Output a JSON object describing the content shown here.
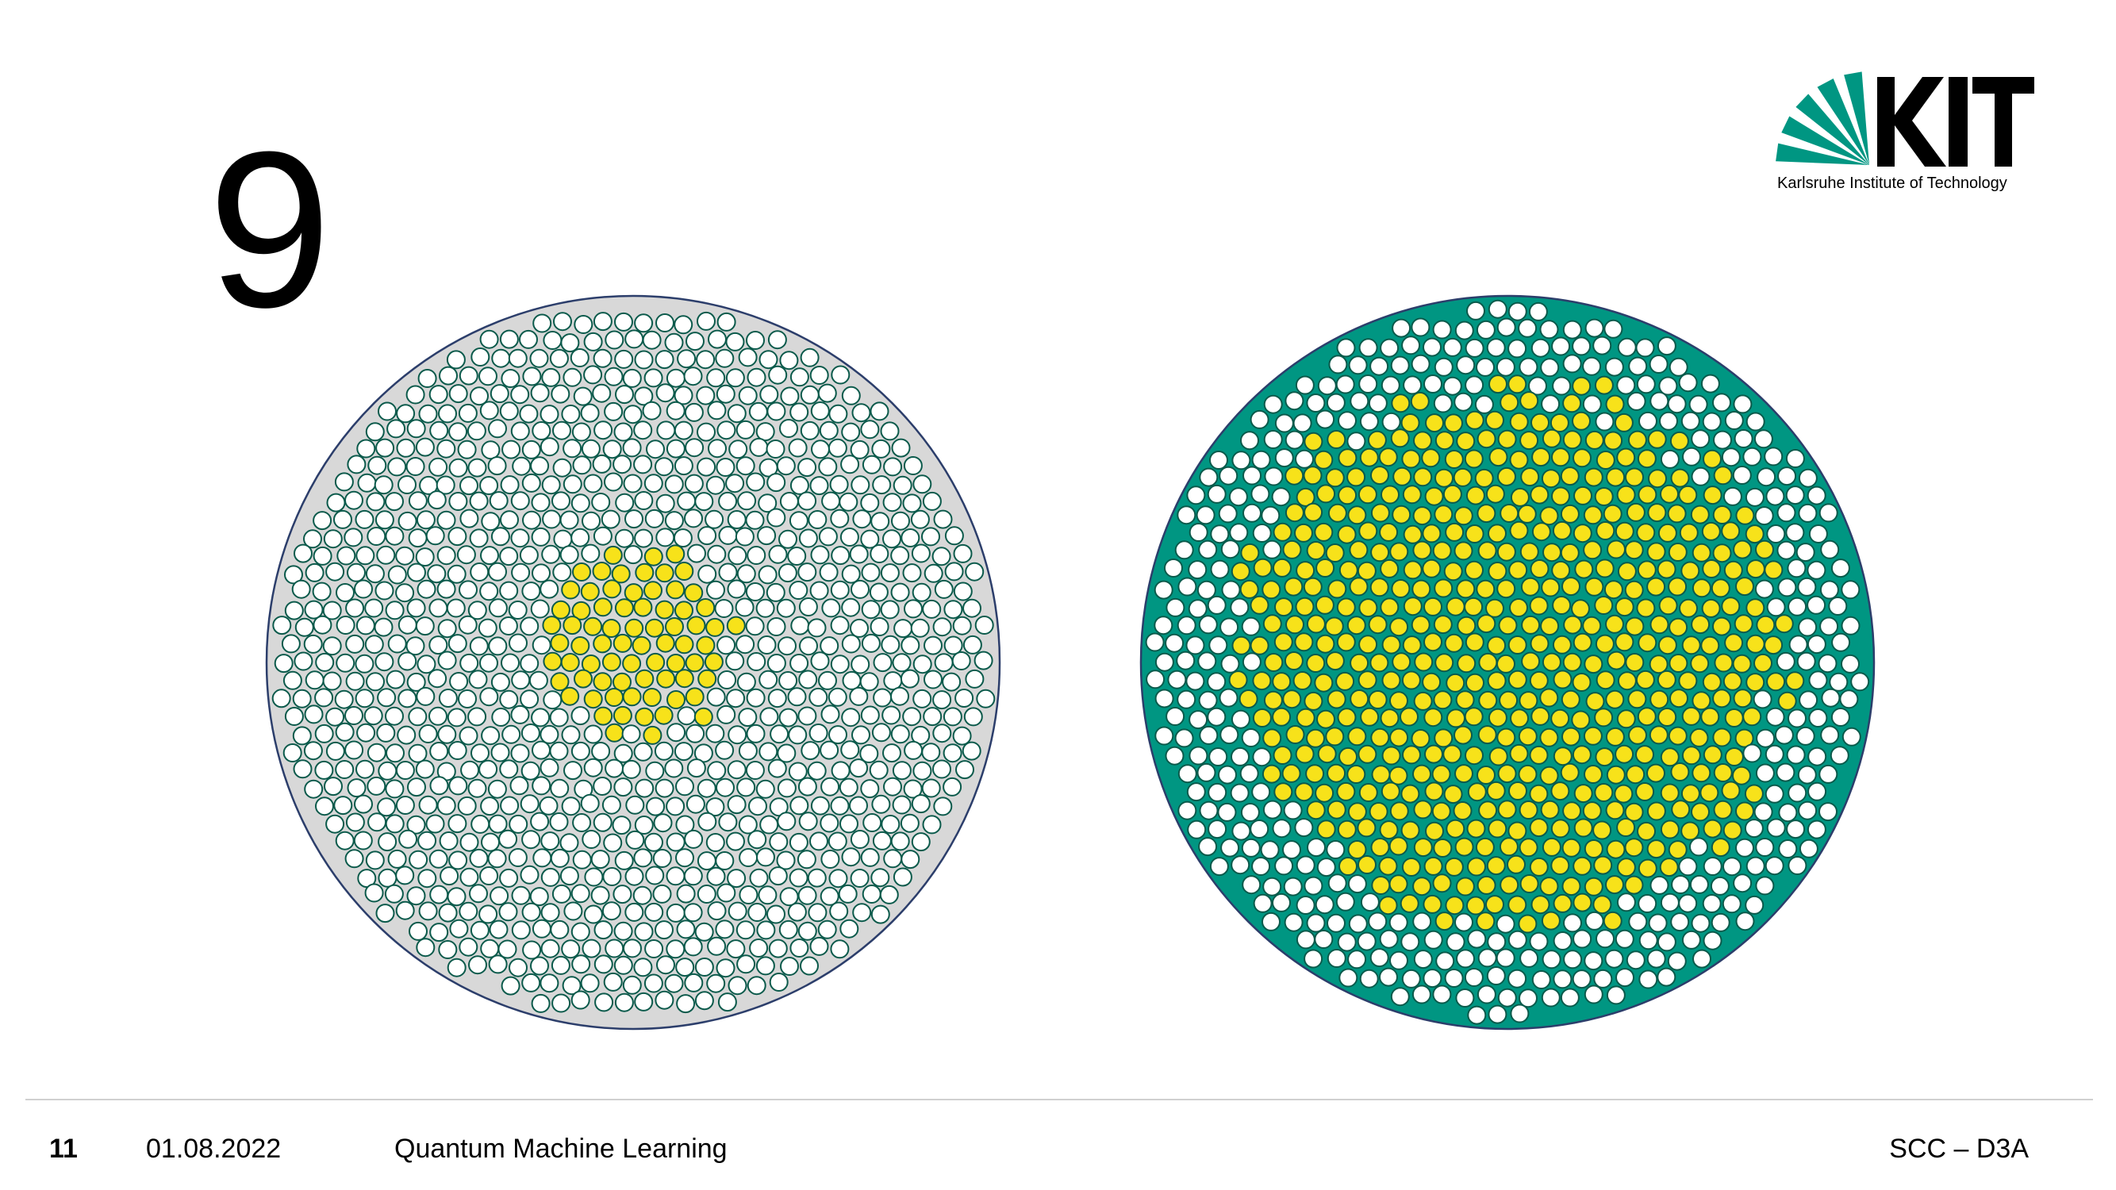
{
  "slide": {
    "heading": "9"
  },
  "logo": {
    "wordmark": "KIT",
    "caption": "Karlsruhe Institute of Technology",
    "accent_color": "#009682"
  },
  "figures": {
    "left_disk": {
      "background_color": "#d8d8d8",
      "outline_color": "#2c3e6b",
      "particle_outline_color": "#0b5a4b",
      "particle_fill": "#ffffff",
      "highlight_fill": "#f7e21a",
      "highlight_region": "small central cluster"
    },
    "right_disk": {
      "background_color": "#009682",
      "outline_color": "#2c3e6b",
      "particle_outline_color": "#0b5a4b",
      "particle_fill": "#ffffff",
      "highlight_fill": "#f7e21a",
      "highlight_region": "large central cluster"
    }
  },
  "footer": {
    "page_number": "11",
    "date": "01.08.2022",
    "title": "Quantum Machine Learning",
    "department": "SCC – D3A"
  }
}
